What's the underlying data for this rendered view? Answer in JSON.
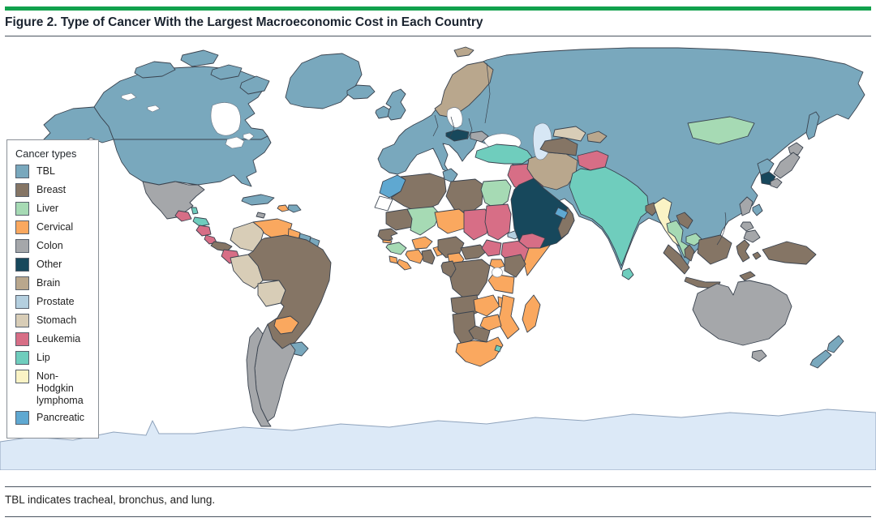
{
  "figure": {
    "title": "Figure 2. Type of Cancer With the Largest Macroeconomic Cost in Each Country",
    "footnote": "TBL indicates tracheal, bronchus, and lung.",
    "accent_green": "#12A14D"
  },
  "legend": {
    "title": "Cancer types",
    "items": [
      {
        "key": "tbl",
        "label": "TBL",
        "color": "#79A8BD"
      },
      {
        "key": "breast",
        "label": "Breast",
        "color": "#857565"
      },
      {
        "key": "liver",
        "label": "Liver",
        "color": "#A6DAB4"
      },
      {
        "key": "cervical",
        "label": "Cervical",
        "color": "#FAA85F"
      },
      {
        "key": "colon",
        "label": "Colon",
        "color": "#A5A7AA"
      },
      {
        "key": "other",
        "label": "Other",
        "color": "#17485C"
      },
      {
        "key": "brain",
        "label": "Brain",
        "color": "#B9A78D"
      },
      {
        "key": "prostate",
        "label": "Prostate",
        "color": "#B4CFDF"
      },
      {
        "key": "stomach",
        "label": "Stomach",
        "color": "#D8CDB7"
      },
      {
        "key": "leukemia",
        "label": "Leukemia",
        "color": "#D76E86"
      },
      {
        "key": "lip",
        "label": "Lip",
        "color": "#6FCDBD"
      },
      {
        "key": "nhl",
        "label": "Non-Hodgkin lymphoma",
        "color": "#FAF3C5"
      },
      {
        "key": "pancreatic",
        "label": "Pancreatic",
        "color": "#5FA8D1"
      }
    ]
  },
  "map_data": {
    "type": "choropleth-world-map",
    "colors": {
      "ocean": "#FFFFFF",
      "border_stroke": "#39424E",
      "antarctica_fill": "#DCE9F7",
      "antarctica_stroke": "#8FA3BC",
      "inland_water_fill": "#FFFFFF",
      "caspian_fill": "#D7E7F5",
      "unclassified_fill": "#FFFFFF"
    },
    "assignments": {
      "eurasia": "tbl",
      "canada": "tbl",
      "united-states": "tbl",
      "greenland": "tbl",
      "iceland": "tbl",
      "mexico": "colon",
      "guatemala": "leukemia",
      "belize": "lip",
      "honduras": "lip",
      "nicaragua": "leukemia",
      "costa-rica": "leukemia",
      "panama": "breast",
      "cuba": "tbl",
      "jamaica": "colon",
      "haiti": "cervical",
      "dominican-republic": "tbl",
      "colombia": "stomach",
      "venezuela": "cervical",
      "guyana": "cervical",
      "suriname": "tbl",
      "french-guiana": "tbl",
      "ecuador": "leukemia",
      "peru": "stomach",
      "bolivia": "stomach",
      "brazil": "breast",
      "paraguay": "cervical",
      "uruguay": "tbl",
      "argentina": "colon",
      "chile": "colon",
      "united-kingdom": "tbl",
      "ireland": "tbl",
      "scandinavia": "brain",
      "svalbard": "brain",
      "austria": "other",
      "hungary": "colon",
      "turkey": "lip",
      "syria-iraq": "leukemia",
      "saudi-arabia": "other",
      "yemen": "leukemia",
      "oman": "breast",
      "united-arab-emirates": "pancreatic",
      "iran": "brain",
      "turkmenistan": "breast",
      "uzbekistan": "stomach",
      "tajikistan": "brain",
      "afghanistan": "leukemia",
      "india-pakistan": "lip",
      "sri-lanka": "lip",
      "bangladesh": "breast",
      "myanmar": "nhl",
      "thailand": "liver",
      "laos": "breast",
      "cambodia": "liver",
      "malaysia": "breast",
      "mongolia": "liver",
      "north-korea": "tbl",
      "south-korea": "other",
      "japan": "colon",
      "taiwan": "tbl",
      "philippines": "colon",
      "indonesia": "breast",
      "new-guinea": "breast",
      "australia": "colon",
      "new-zealand": "tbl",
      "morocco": "pancreatic",
      "algeria": "breast",
      "tunisia": "tbl",
      "libya": "breast",
      "egypt": "liver",
      "mauritania": "breast",
      "senegal": "breast",
      "gambia": "cervical",
      "mali": "liver",
      "guinea": "liver",
      "sierra-leone": "cervical",
      "liberia": "cervical",
      "cote-divoire": "cervical",
      "ghana": "breast",
      "burkina-faso": "cervical",
      "togo-benin": "cervical",
      "niger": "cervical",
      "nigeria": "breast",
      "chad": "leukemia",
      "sudan": "leukemia",
      "eritrea": "prostate",
      "ethiopia": "leukemia",
      "somalia": "cervical",
      "cameroon": "cervical",
      "central-african-republic": "breast",
      "south-sudan": "leukemia",
      "drc": "breast",
      "congo-gabon": "breast",
      "uganda": "cervical",
      "kenya": "breast",
      "tanzania": "cervical",
      "angola": "breast",
      "zambia": "cervical",
      "malawi": "cervical",
      "mozambique": "cervical",
      "zimbabwe": "cervical",
      "botswana": "breast",
      "namibia": "breast",
      "south-africa": "cervical",
      "eswatini": "lip",
      "madagascar": "cervical",
      "western-sahara": "unclassified"
    }
  }
}
